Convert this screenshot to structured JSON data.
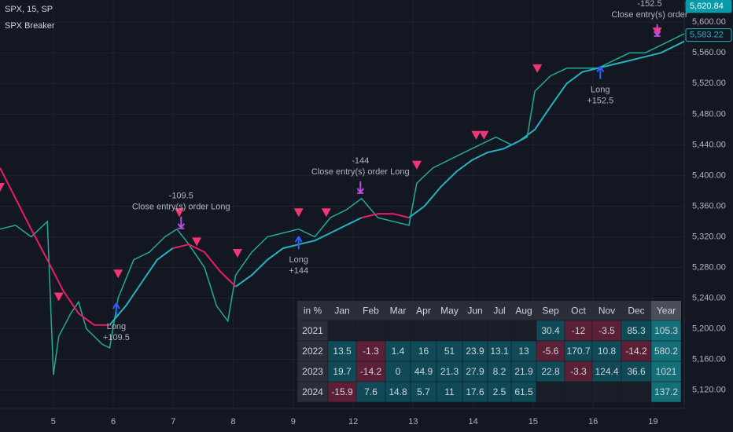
{
  "chart_data": {
    "type": "line",
    "title": "SPX, 15, SP",
    "subtitle": "SPX Breaker",
    "xlim": [
      0.11,
      11.52
    ],
    "ylim": [
      5096,
      5629
    ],
    "xticks": [
      {
        "value": 1,
        "label": "5"
      },
      {
        "value": 2,
        "label": "6"
      },
      {
        "value": 3,
        "label": "7"
      },
      {
        "value": 4,
        "label": "8"
      },
      {
        "value": 5,
        "label": "9"
      },
      {
        "value": 6,
        "label": "12"
      },
      {
        "value": 7,
        "label": "13"
      },
      {
        "value": 8,
        "label": "14"
      },
      {
        "value": 9,
        "label": "15"
      },
      {
        "value": 10,
        "label": "16"
      },
      {
        "value": 11,
        "label": "19"
      }
    ],
    "yticks": [
      {
        "value": 5120,
        "label": "5,120.00"
      },
      {
        "value": 5160,
        "label": "5,160.00"
      },
      {
        "value": 5200,
        "label": "5,200.00"
      },
      {
        "value": 5240,
        "label": "5,240.00"
      },
      {
        "value": 5280,
        "label": "5,280.00"
      },
      {
        "value": 5320,
        "label": "5,320.00"
      },
      {
        "value": 5360,
        "label": "5,360.00"
      },
      {
        "value": 5400,
        "label": "5,400.00"
      },
      {
        "value": 5440,
        "label": "5,440.00"
      },
      {
        "value": 5480,
        "label": "5,480.00"
      },
      {
        "value": 5520,
        "label": "5,520.00"
      },
      {
        "value": 5560,
        "label": "5,560.00"
      },
      {
        "value": 5600,
        "label": "5,600.00"
      }
    ],
    "grid": true,
    "series": [
      {
        "color": "#22ab94",
        "x": [
          0.11,
          0.37,
          0.63,
          0.9,
          1.0,
          1.09,
          1.29,
          1.42,
          1.55,
          1.81,
          1.94,
          2.08,
          2.34,
          2.6,
          2.86,
          3.06,
          3.26,
          3.52,
          3.72,
          3.91,
          4.04,
          4.31,
          4.57,
          4.83,
          5.09,
          5.36,
          5.62,
          5.88,
          6.14,
          6.41,
          6.67,
          6.93,
          7.06,
          7.33,
          7.59,
          7.85,
          8.11,
          8.38,
          8.64,
          8.9,
          9.03,
          9.29,
          9.56,
          9.82,
          10.08,
          10.34,
          10.61,
          10.87,
          11.13,
          11.39,
          11.52
        ],
        "values": [
          5330,
          5335,
          5320,
          5340,
          5140,
          5190,
          5220,
          5235,
          5200,
          5180,
          5175,
          5240,
          5290,
          5300,
          5320,
          5330,
          5310,
          5280,
          5230,
          5210,
          5270,
          5300,
          5320,
          5325,
          5330,
          5320,
          5345,
          5355,
          5370,
          5345,
          5340,
          5335,
          5390,
          5410,
          5420,
          5430,
          5440,
          5450,
          5440,
          5450,
          5510,
          5530,
          5540,
          5540,
          5540,
          5550,
          5560,
          5560,
          5570,
          5580,
          5585
        ]
      },
      {
        "color": "#e91e63",
        "x": [
          0.11,
          0.37,
          0.63,
          0.9,
          1.16,
          1.42,
          1.68,
          1.94,
          2.21,
          2.47,
          2.73,
          2.99,
          3.26,
          3.52,
          3.78,
          4.04,
          4.31,
          4.57,
          4.83,
          5.09,
          5.36,
          5.62,
          5.88,
          6.14,
          6.41,
          6.67,
          6.93,
          7.19,
          7.46,
          7.72,
          7.98,
          8.24,
          8.51,
          8.77,
          9.03,
          9.29,
          9.56,
          9.82,
          10.08,
          10.34,
          10.61,
          10.87,
          11.13,
          11.52
        ],
        "values": [
          5410,
          5370,
          5330,
          5290,
          5250,
          5220,
          5205,
          5205,
          null,
          null,
          null,
          5305,
          5310,
          5300,
          5275,
          5255,
          null,
          null,
          null,
          null,
          null,
          null,
          null,
          5345,
          5350,
          5350,
          5345,
          null,
          null,
          null,
          null,
          null,
          null,
          null,
          null,
          null,
          null,
          null,
          null,
          null,
          null,
          null,
          null,
          null
        ]
      },
      {
        "color": "#26b1c1",
        "x": [
          0.11,
          0.37,
          0.63,
          0.9,
          1.16,
          1.42,
          1.68,
          1.94,
          2.21,
          2.47,
          2.73,
          2.99,
          3.26,
          3.52,
          3.78,
          4.04,
          4.31,
          4.57,
          4.83,
          5.09,
          5.36,
          5.62,
          5.88,
          6.14,
          6.41,
          6.67,
          6.93,
          7.19,
          7.46,
          7.72,
          7.98,
          8.24,
          8.51,
          8.77,
          9.03,
          9.29,
          9.56,
          9.82,
          10.08,
          10.34,
          10.61,
          10.87,
          11.13,
          11.52
        ],
        "values": [
          null,
          null,
          null,
          null,
          null,
          null,
          null,
          5205,
          5230,
          5260,
          5290,
          5305,
          null,
          null,
          null,
          5255,
          5270,
          5290,
          5305,
          5310,
          5315,
          5325,
          5335,
          5345,
          null,
          null,
          5345,
          5360,
          5385,
          5405,
          5420,
          5430,
          5435,
          5445,
          5460,
          5490,
          5520,
          5535,
          5540,
          5545,
          5550,
          5555,
          5560,
          5575
        ]
      }
    ],
    "signals": {
      "color": "#f23671",
      "x": [
        0.11,
        1.09,
        2.08,
        3.1,
        3.39,
        4.07,
        5.09,
        5.55,
        7.06,
        8.05,
        8.18,
        9.07,
        11.07
      ],
      "values": [
        5385,
        5242,
        5272,
        5352,
        5314,
        5299,
        5352,
        5352,
        5414,
        5453,
        5453,
        5540,
        5588
      ]
    },
    "entries": {
      "color": "#2962ff",
      "x": [
        2.05,
        5.09,
        10.12
      ],
      "values": [
        5219,
        5306,
        5528
      ],
      "labels": [
        [
          "Long",
          "+109.5"
        ],
        [
          "Long",
          "+144"
        ],
        [
          "Long",
          "+152.5"
        ]
      ]
    },
    "exits": {
      "color": "#b84dde",
      "x": [
        3.13,
        6.12,
        11.07
      ],
      "values": [
        5332,
        5378,
        5583
      ],
      "labels": [
        [
          "-109.5",
          "Close entry(s) order Long"
        ],
        [
          "-144",
          "Close entry(s) order Long"
        ],
        [
          "-152.5",
          "Close entry(s) order"
        ]
      ]
    },
    "price_labels": [
      {
        "value": 5620.84,
        "label": "5,620.84",
        "color": "#089aa8"
      },
      {
        "value": 5583.22,
        "label": "5,583.22",
        "color": "#26b1c1"
      }
    ]
  },
  "table": {
    "header": [
      "in %",
      "Jan",
      "Feb",
      "Mar",
      "Apr",
      "May",
      "Jun",
      "Jul",
      "Aug",
      "Sep",
      "Oct",
      "Nov",
      "Dec",
      "Year"
    ],
    "rows": [
      [
        "2021",
        null,
        null,
        null,
        null,
        null,
        null,
        null,
        null,
        30.4,
        -12,
        -3.5,
        85.3,
        105.3
      ],
      [
        "2022",
        13.5,
        -1.3,
        1.4,
        16,
        51,
        23.9,
        13.1,
        13,
        -5.6,
        170.7,
        10.8,
        -14.2,
        580.2
      ],
      [
        "2023",
        19.7,
        -14.2,
        0,
        44.9,
        21.3,
        27.9,
        8.2,
        21.9,
        22.8,
        -3.3,
        124.4,
        36.6,
        1021
      ],
      [
        "2024",
        -15.9,
        7.6,
        14.8,
        5.7,
        11,
        17.6,
        2.5,
        61.5,
        null,
        null,
        null,
        null,
        137.2
      ]
    ]
  }
}
